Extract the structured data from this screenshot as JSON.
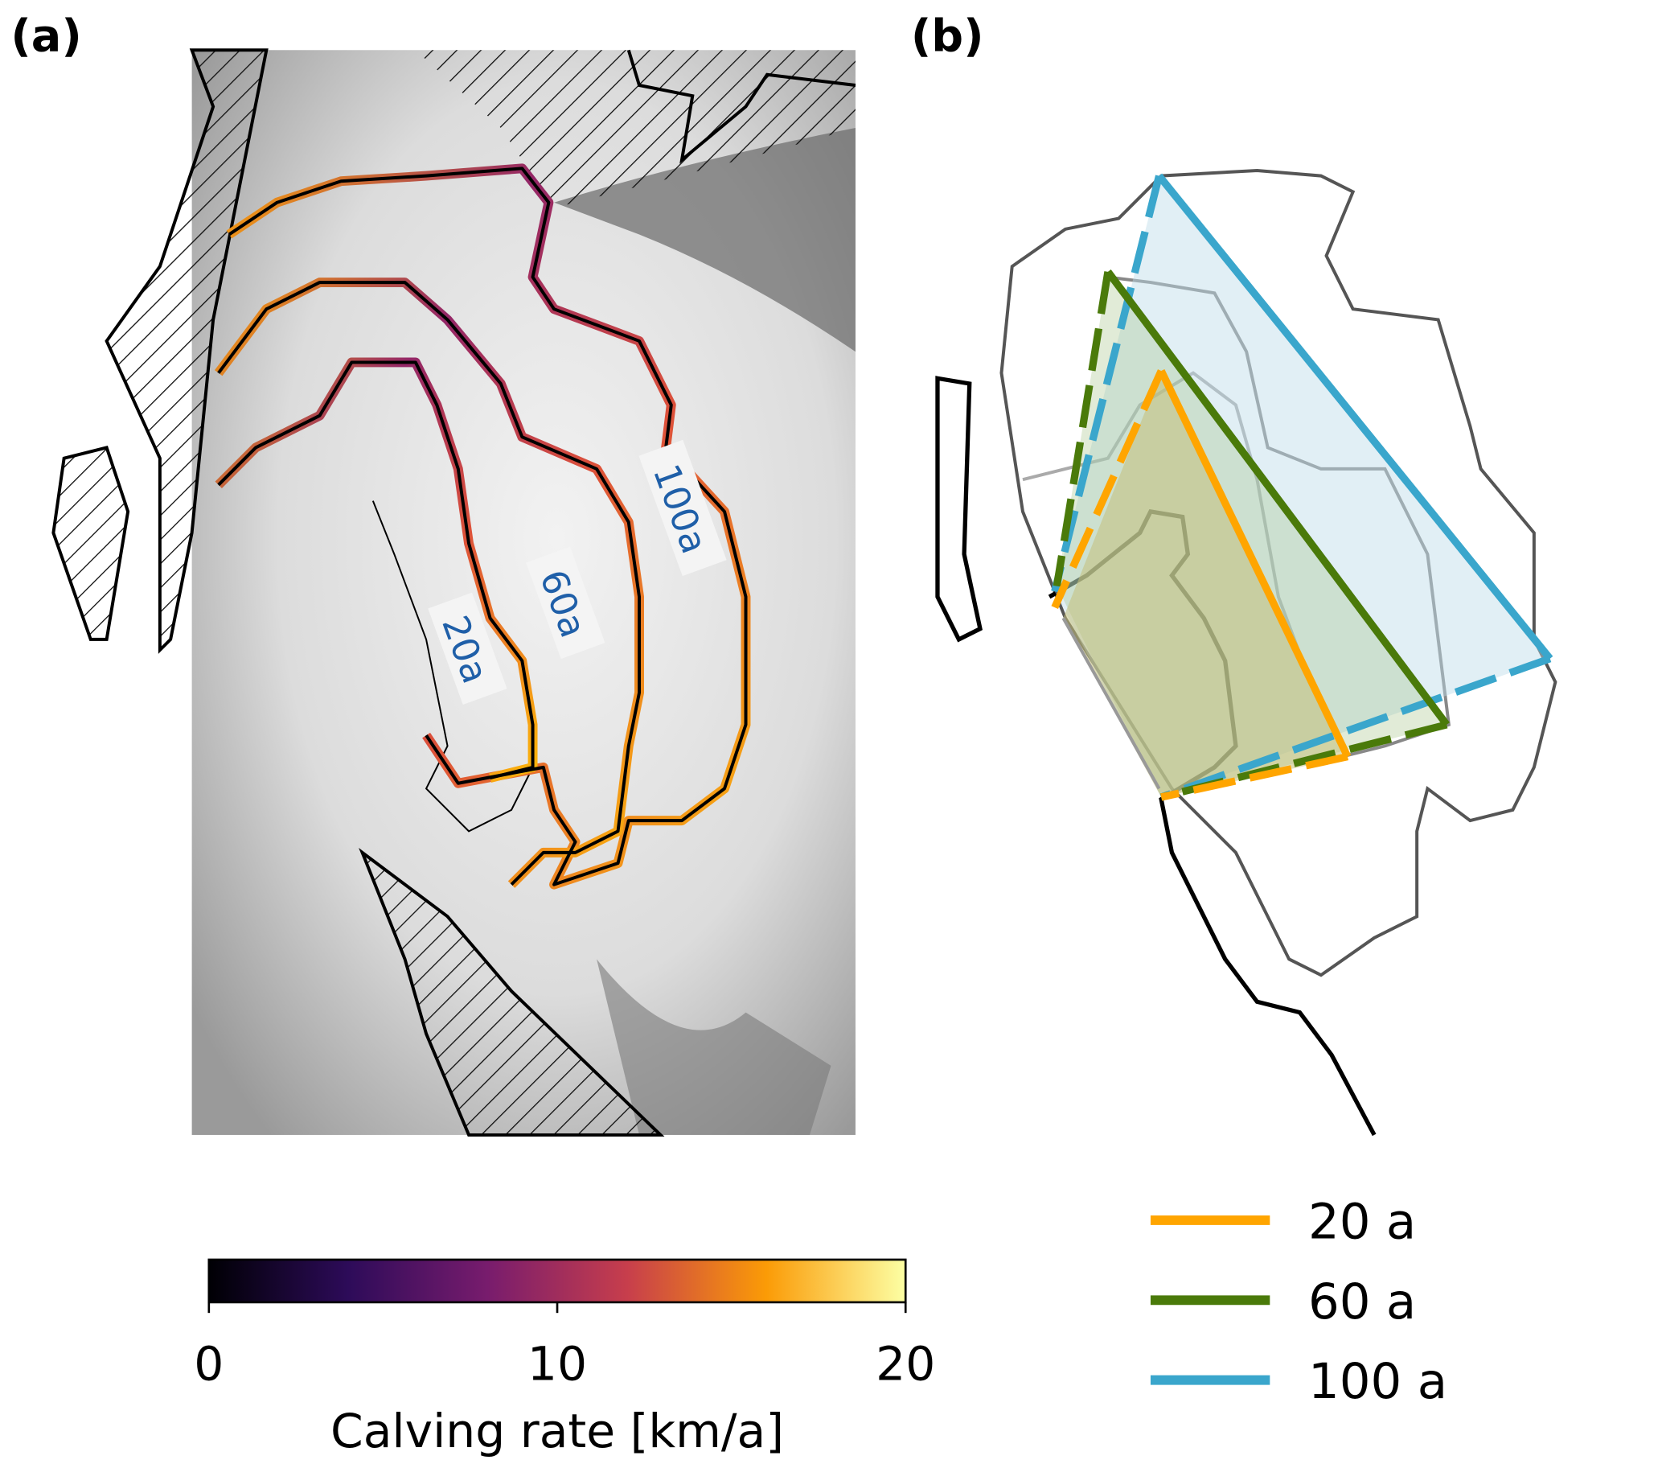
{
  "panels": {
    "a": {
      "label": "(a)",
      "contour_labels": [
        "20a",
        "60a",
        "100a"
      ]
    },
    "b": {
      "label": "(b)"
    }
  },
  "colorbar": {
    "colormap": "inferno",
    "range": [
      0,
      20
    ],
    "ticks": [
      "0",
      "10",
      "20"
    ],
    "label": "Calving rate [km/a]"
  },
  "legend": [
    {
      "label": "20 a",
      "color": "#ffa500"
    },
    {
      "label": "60 a",
      "color": "#4a7a0a"
    },
    {
      "label": "100 a",
      "color": "#3aa6cc"
    }
  ],
  "colors": {
    "label_text": "#1f5fa8",
    "outline": "#000000",
    "outline_gray": "#555555"
  }
}
